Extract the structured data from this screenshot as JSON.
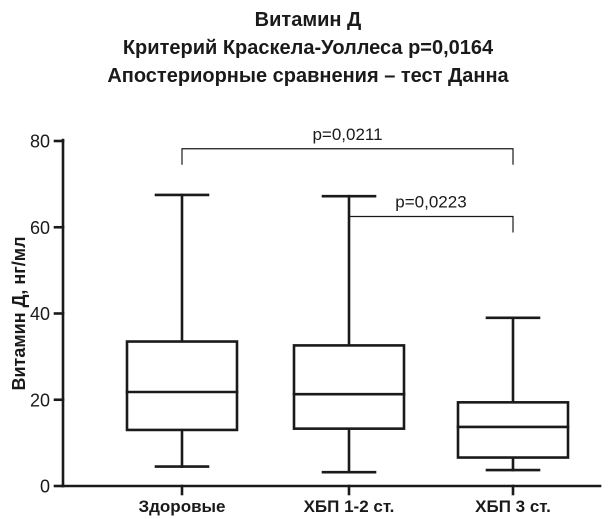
{
  "chart_data": {
    "type": "box",
    "title_lines": [
      "Витамин Д",
      "Критерий Краскела-Уоллеса  p=0,0164",
      "Апостериорные сравнения – тест Данна"
    ],
    "xlabel": "",
    "ylabel": "Витамин Д, нг/мл",
    "ylim": [
      0,
      80
    ],
    "yticks": [
      0,
      20,
      40,
      60,
      80
    ],
    "grid": false,
    "categories": [
      "Здоровые",
      "ХБП 1-2 ст.",
      "ХБП 3 ст."
    ],
    "boxes": [
      {
        "min": 4.5,
        "q1": 13.0,
        "median": 21.8,
        "q3": 33.5,
        "max": 67.5
      },
      {
        "min": 3.2,
        "q1": 13.3,
        "median": 21.3,
        "q3": 32.6,
        "max": 67.2
      },
      {
        "min": 3.7,
        "q1": 6.6,
        "median": 13.7,
        "q3": 19.4,
        "max": 39.0
      }
    ],
    "comparisons": [
      {
        "from": 0,
        "to": 2,
        "label": "p=0,0211",
        "y": 78.2
      },
      {
        "from": 1,
        "to": 2,
        "label": "p=0,0223",
        "y": 62.5
      }
    ]
  }
}
